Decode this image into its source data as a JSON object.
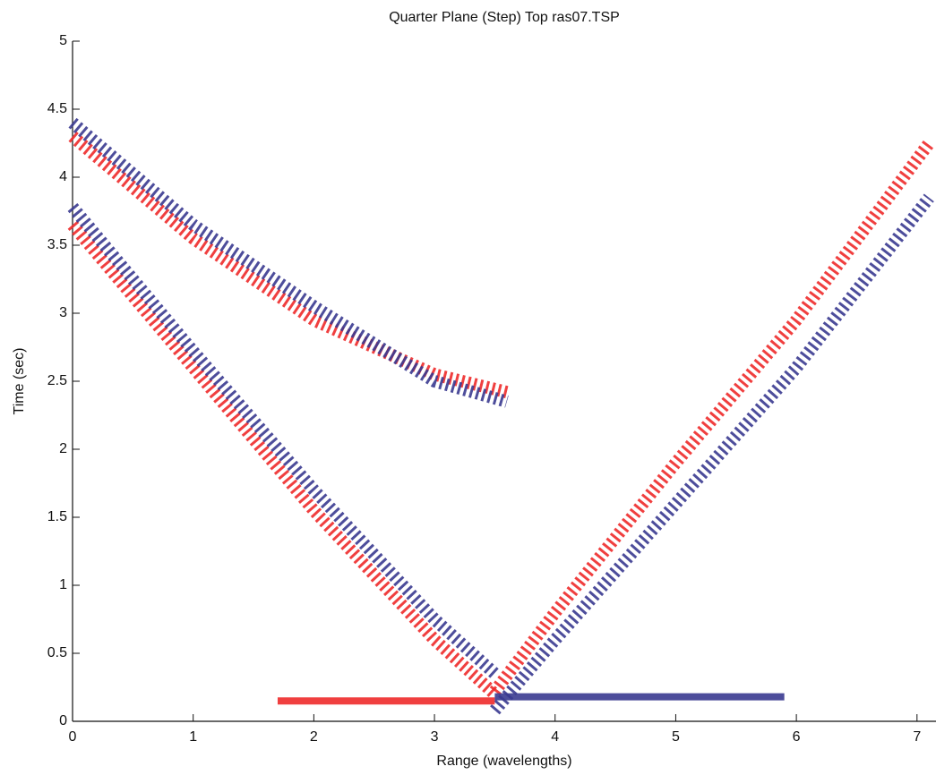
{
  "chart_data": {
    "type": "line",
    "title": "Quarter Plane (Step) Top ras07.TSP",
    "x_label": "Range (wavelengths)",
    "y_label": "Time (sec)",
    "xlim": [
      0,
      7.15
    ],
    "ylim": [
      0,
      5
    ],
    "xticks": [
      0,
      1,
      2,
      3,
      4,
      5,
      6,
      7
    ],
    "yticks": [
      0,
      0.5,
      1,
      1.5,
      2,
      2.5,
      3,
      3.5,
      4,
      4.5,
      5
    ],
    "series": [
      {
        "color": "#ee2a2a",
        "x": [
          0,
          1,
          2,
          3,
          3.5
        ],
        "values": [
          3.65,
          2.6,
          1.55,
          0.6,
          0.2
        ]
      },
      {
        "color": "#3a3a90",
        "x": [
          0,
          1,
          2,
          3,
          3.5
        ],
        "values": [
          3.78,
          2.72,
          1.7,
          0.75,
          0.35
        ]
      },
      {
        "color": "#3a3a90",
        "x": [
          3.5,
          4,
          5,
          6,
          7.1
        ],
        "values": [
          0.08,
          0.6,
          1.6,
          2.6,
          3.85
        ]
      },
      {
        "color": "#ee2a2a",
        "x": [
          3.5,
          4,
          5,
          6,
          7.1
        ],
        "values": [
          0.22,
          0.8,
          1.9,
          2.95,
          4.25
        ]
      },
      {
        "color": "#ee2a2a",
        "x": [
          0,
          1,
          2,
          3,
          3.6
        ],
        "values": [
          4.3,
          3.55,
          2.95,
          2.55,
          2.42
        ]
      },
      {
        "color": "#3a3a90",
        "x": [
          0,
          1,
          2,
          3,
          3.6
        ],
        "values": [
          4.4,
          3.65,
          3.05,
          2.5,
          2.35
        ]
      },
      {
        "color": "#ee2a2a",
        "x": [
          1.7,
          3.5
        ],
        "values": [
          0.15,
          0.15
        ]
      },
      {
        "color": "#3a3a90",
        "x": [
          3.5,
          5.9
        ],
        "values": [
          0.18,
          0.18
        ]
      }
    ]
  }
}
